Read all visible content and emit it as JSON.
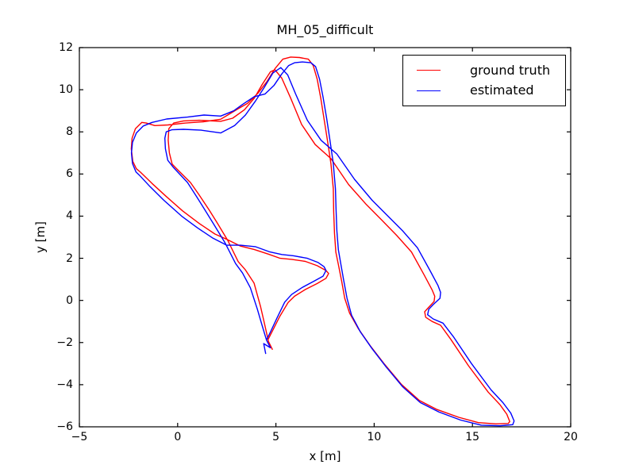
{
  "title": "MH_05_difficult",
  "axes": {
    "xlabel": "x [m]",
    "ylabel": "y [m]"
  },
  "legend": {
    "items": [
      {
        "label": "ground truth",
        "color": "#ff0000"
      },
      {
        "label": "estimated",
        "color": "#0000ff"
      }
    ]
  },
  "chart_data": {
    "type": "line",
    "title": "MH_05_difficult",
    "xlabel": "x [m]",
    "ylabel": "y [m]",
    "xlim": [
      -5,
      20
    ],
    "ylim": [
      -6,
      12
    ],
    "xticks": [
      -5,
      0,
      5,
      10,
      15,
      20
    ],
    "yticks": [
      -6,
      -4,
      -2,
      0,
      2,
      4,
      6,
      8,
      10,
      12
    ],
    "grid": false,
    "legend_position": "upper right",
    "series": [
      {
        "name": "ground truth",
        "color": "#ff0000",
        "points": [
          [
            4.82,
            -2.32
          ],
          [
            4.62,
            -1.95
          ],
          [
            4.58,
            -1.78
          ],
          [
            4.42,
            -1.1
          ],
          [
            4.22,
            -0.3
          ],
          [
            3.89,
            0.82
          ],
          [
            3.45,
            1.45
          ],
          [
            3.08,
            1.84
          ],
          [
            2.55,
            2.85
          ],
          [
            2.0,
            3.7
          ],
          [
            1.6,
            4.3
          ],
          [
            1.1,
            5.0
          ],
          [
            0.65,
            5.6
          ],
          [
            -0.05,
            6.25
          ],
          [
            -0.28,
            6.47
          ],
          [
            -0.42,
            7.0
          ],
          [
            -0.48,
            7.6
          ],
          [
            -0.45,
            8.15
          ],
          [
            -0.2,
            8.42
          ],
          [
            0.3,
            8.52
          ],
          [
            1.1,
            8.55
          ],
          [
            2.19,
            8.5
          ],
          [
            2.8,
            8.65
          ],
          [
            3.4,
            9.05
          ],
          [
            3.9,
            9.6
          ],
          [
            4.3,
            10.25
          ],
          [
            4.72,
            10.85
          ],
          [
            4.95,
            10.95
          ],
          [
            5.3,
            10.55
          ],
          [
            5.75,
            9.6
          ],
          [
            6.31,
            8.35
          ],
          [
            7.0,
            7.4
          ],
          [
            7.8,
            6.73
          ],
          [
            8.7,
            5.5
          ],
          [
            9.6,
            4.55
          ],
          [
            10.4,
            3.8
          ],
          [
            11.15,
            3.08
          ],
          [
            11.9,
            2.3
          ],
          [
            12.55,
            1.2
          ],
          [
            12.95,
            0.5
          ],
          [
            13.08,
            0.2
          ],
          [
            13.05,
            -0.05
          ],
          [
            12.75,
            -0.35
          ],
          [
            12.57,
            -0.54
          ],
          [
            12.62,
            -0.8
          ],
          [
            12.95,
            -1.0
          ],
          [
            13.38,
            -1.18
          ],
          [
            13.9,
            -1.85
          ],
          [
            14.8,
            -3.1
          ],
          [
            15.8,
            -4.35
          ],
          [
            16.4,
            -4.95
          ],
          [
            16.75,
            -5.4
          ],
          [
            16.9,
            -5.75
          ],
          [
            16.82,
            -5.84
          ],
          [
            16.2,
            -5.86
          ],
          [
            15.3,
            -5.8
          ],
          [
            14.3,
            -5.55
          ],
          [
            13.2,
            -5.18
          ],
          [
            12.3,
            -4.75
          ],
          [
            11.4,
            -4.0
          ],
          [
            10.5,
            -3.0
          ],
          [
            9.8,
            -2.15
          ],
          [
            9.2,
            -1.35
          ],
          [
            8.75,
            -0.6
          ],
          [
            8.5,
            0.1
          ],
          [
            8.35,
            0.9
          ],
          [
            8.18,
            1.7
          ],
          [
            8.05,
            2.29
          ],
          [
            7.98,
            3.2
          ],
          [
            7.94,
            4.2
          ],
          [
            7.92,
            5.3
          ],
          [
            7.8,
            6.5
          ],
          [
            7.62,
            7.6
          ],
          [
            7.45,
            8.6
          ],
          [
            7.28,
            9.6
          ],
          [
            7.1,
            10.5
          ],
          [
            6.9,
            11.15
          ],
          [
            6.65,
            11.45
          ],
          [
            6.2,
            11.53
          ],
          [
            5.75,
            11.55
          ],
          [
            5.35,
            11.45
          ],
          [
            4.95,
            11.0
          ],
          [
            4.55,
            10.4
          ],
          [
            4.1,
            9.85
          ],
          [
            3.55,
            9.35
          ],
          [
            3.08,
            9.1
          ],
          [
            2.55,
            8.8
          ],
          [
            2.19,
            8.6
          ],
          [
            1.3,
            8.48
          ],
          [
            0.4,
            8.42
          ],
          [
            -0.5,
            8.33
          ],
          [
            -1.16,
            8.3
          ],
          [
            -1.6,
            8.42
          ],
          [
            -1.82,
            8.45
          ],
          [
            -2.15,
            8.15
          ],
          [
            -2.32,
            7.7
          ],
          [
            -2.36,
            7.2
          ],
          [
            -2.28,
            6.6
          ],
          [
            -2.1,
            6.25
          ],
          [
            -1.9,
            6.09
          ],
          [
            -1.3,
            5.55
          ],
          [
            -0.6,
            4.95
          ],
          [
            0.25,
            4.25
          ],
          [
            1.1,
            3.65
          ],
          [
            1.9,
            3.15
          ],
          [
            2.55,
            2.88
          ],
          [
            3.2,
            2.58
          ],
          [
            3.89,
            2.42
          ],
          [
            4.6,
            2.2
          ],
          [
            5.22,
            2.0
          ],
          [
            5.8,
            1.95
          ],
          [
            6.5,
            1.85
          ],
          [
            7.1,
            1.65
          ],
          [
            7.55,
            1.42
          ],
          [
            7.68,
            1.28
          ],
          [
            7.55,
            1.05
          ],
          [
            7.1,
            0.8
          ],
          [
            6.5,
            0.52
          ],
          [
            5.95,
            0.2
          ],
          [
            5.62,
            -0.1
          ],
          [
            5.2,
            -0.75
          ],
          [
            4.85,
            -1.4
          ],
          [
            4.62,
            -1.82
          ]
        ]
      },
      {
        "name": "estimated",
        "color": "#0000ff",
        "points": [
          [
            4.48,
            -2.52
          ],
          [
            4.38,
            -2.05
          ],
          [
            4.72,
            -2.25
          ],
          [
            4.52,
            -1.88
          ],
          [
            4.3,
            -1.2
          ],
          [
            4.05,
            -0.4
          ],
          [
            3.7,
            0.6
          ],
          [
            3.3,
            1.3
          ],
          [
            2.95,
            1.75
          ],
          [
            2.42,
            2.72
          ],
          [
            1.85,
            3.6
          ],
          [
            1.45,
            4.2
          ],
          [
            0.95,
            4.95
          ],
          [
            0.5,
            5.6
          ],
          [
            -0.2,
            6.3
          ],
          [
            -0.5,
            6.65
          ],
          [
            -0.62,
            7.2
          ],
          [
            -0.65,
            7.7
          ],
          [
            -0.58,
            8.0
          ],
          [
            -0.3,
            8.1
          ],
          [
            0.3,
            8.12
          ],
          [
            1.2,
            8.08
          ],
          [
            2.19,
            7.95
          ],
          [
            2.9,
            8.3
          ],
          [
            3.45,
            8.8
          ],
          [
            3.95,
            9.45
          ],
          [
            4.4,
            10.1
          ],
          [
            4.85,
            10.8
          ],
          [
            5.25,
            11.05
          ],
          [
            5.6,
            10.7
          ],
          [
            6.0,
            9.8
          ],
          [
            6.6,
            8.55
          ],
          [
            7.3,
            7.6
          ],
          [
            8.1,
            6.95
          ],
          [
            9.0,
            5.75
          ],
          [
            9.9,
            4.75
          ],
          [
            10.7,
            4.0
          ],
          [
            11.45,
            3.3
          ],
          [
            12.2,
            2.5
          ],
          [
            12.85,
            1.4
          ],
          [
            13.25,
            0.7
          ],
          [
            13.38,
            0.38
          ],
          [
            13.35,
            0.1
          ],
          [
            13.0,
            -0.2
          ],
          [
            12.78,
            -0.42
          ],
          [
            12.72,
            -0.68
          ],
          [
            13.0,
            -0.88
          ],
          [
            13.5,
            -1.08
          ],
          [
            14.05,
            -1.75
          ],
          [
            14.95,
            -3.0
          ],
          [
            15.95,
            -4.25
          ],
          [
            16.55,
            -4.85
          ],
          [
            16.95,
            -5.35
          ],
          [
            17.12,
            -5.72
          ],
          [
            17.05,
            -5.9
          ],
          [
            16.4,
            -5.95
          ],
          [
            15.45,
            -5.92
          ],
          [
            14.4,
            -5.68
          ],
          [
            13.3,
            -5.3
          ],
          [
            12.35,
            -4.85
          ],
          [
            11.45,
            -4.1
          ],
          [
            10.6,
            -3.15
          ],
          [
            9.9,
            -2.3
          ],
          [
            9.3,
            -1.5
          ],
          [
            8.85,
            -0.7
          ],
          [
            8.62,
            0.1
          ],
          [
            8.45,
            0.95
          ],
          [
            8.3,
            1.75
          ],
          [
            8.18,
            2.4
          ],
          [
            8.1,
            3.3
          ],
          [
            8.06,
            4.3
          ],
          [
            8.03,
            5.3
          ],
          [
            7.92,
            6.5
          ],
          [
            7.75,
            7.6
          ],
          [
            7.58,
            8.65
          ],
          [
            7.4,
            9.65
          ],
          [
            7.22,
            10.5
          ],
          [
            7.02,
            11.1
          ],
          [
            6.78,
            11.28
          ],
          [
            6.35,
            11.32
          ],
          [
            5.95,
            11.28
          ],
          [
            5.65,
            11.15
          ],
          [
            5.3,
            10.75
          ],
          [
            4.9,
            10.2
          ],
          [
            4.45,
            9.8
          ],
          [
            3.89,
            9.67
          ],
          [
            3.3,
            9.3
          ],
          [
            2.85,
            9.0
          ],
          [
            2.19,
            8.75
          ],
          [
            1.34,
            8.8
          ],
          [
            0.5,
            8.7
          ],
          [
            -0.56,
            8.61
          ],
          [
            -1.3,
            8.45
          ],
          [
            -1.75,
            8.28
          ],
          [
            -2.1,
            7.95
          ],
          [
            -2.3,
            7.5
          ],
          [
            -2.35,
            7.0
          ],
          [
            -2.3,
            6.5
          ],
          [
            -2.12,
            6.1
          ],
          [
            -1.95,
            5.95
          ],
          [
            -1.4,
            5.4
          ],
          [
            -0.7,
            4.75
          ],
          [
            0.2,
            4.0
          ],
          [
            1.0,
            3.45
          ],
          [
            1.8,
            2.95
          ],
          [
            2.5,
            2.62
          ],
          [
            3.2,
            2.62
          ],
          [
            3.95,
            2.55
          ],
          [
            4.7,
            2.3
          ],
          [
            5.3,
            2.18
          ],
          [
            5.9,
            2.12
          ],
          [
            6.6,
            2.0
          ],
          [
            7.15,
            1.8
          ],
          [
            7.45,
            1.6
          ],
          [
            7.55,
            1.42
          ],
          [
            7.4,
            1.15
          ],
          [
            6.95,
            0.92
          ],
          [
            6.35,
            0.62
          ],
          [
            5.8,
            0.28
          ],
          [
            5.45,
            -0.08
          ],
          [
            5.05,
            -0.85
          ],
          [
            4.72,
            -1.5
          ],
          [
            4.52,
            -1.88
          ]
        ]
      }
    ]
  }
}
